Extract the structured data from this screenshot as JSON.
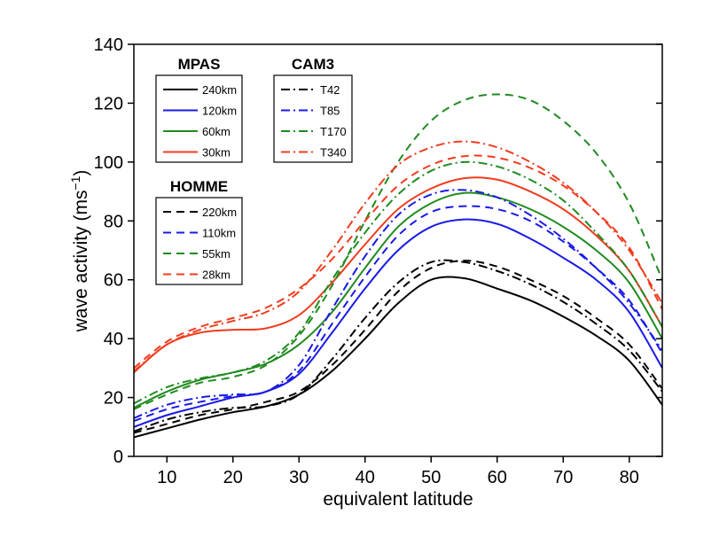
{
  "chart_data": {
    "type": "line",
    "xlabel": "equivalent latitude",
    "ylabel": {
      "main": "wave activity (ms",
      "sup": "−1",
      "end": ")"
    },
    "xlim": [
      5,
      85
    ],
    "ylim": [
      0,
      140
    ],
    "xticks": [
      10,
      20,
      30,
      40,
      50,
      60,
      70,
      80
    ],
    "yticks": [
      0,
      20,
      40,
      60,
      80,
      100,
      120,
      140
    ],
    "grid": false,
    "x": [
      5,
      10,
      15,
      20,
      25,
      30,
      35,
      40,
      45,
      50,
      55,
      60,
      65,
      70,
      75,
      80,
      85
    ],
    "legends": [
      {
        "title": "MPAS",
        "placement": "top-left",
        "entries": [
          0,
          1,
          2,
          3
        ]
      },
      {
        "title": "CAM3",
        "placement": "top-left",
        "entries": [
          8,
          9,
          10,
          11
        ]
      },
      {
        "title": "HOMME",
        "placement": "left",
        "entries": [
          4,
          5,
          6,
          7
        ]
      }
    ],
    "series": [
      {
        "name": "240km",
        "color": "#000000",
        "style": "solid",
        "values": [
          6.5,
          9.5,
          12.5,
          15,
          17,
          21,
          29,
          40,
          52,
          60,
          60.5,
          57,
          53,
          47.5,
          41,
          32.5,
          17.5
        ]
      },
      {
        "name": "120km",
        "color": "#1a1ae6",
        "style": "solid",
        "values": [
          10,
          14,
          17,
          20,
          22,
          28,
          42,
          57,
          70,
          78,
          80.5,
          79,
          74,
          67.5,
          60,
          49,
          30
        ]
      },
      {
        "name": "60km",
        "color": "#1f8a1f",
        "style": "solid",
        "values": [
          16.5,
          22,
          26,
          28.5,
          31.5,
          38,
          49,
          64,
          78,
          86,
          89.5,
          88,
          84,
          78,
          70,
          59,
          40
        ]
      },
      {
        "name": "30km",
        "color": "#f03c1e",
        "style": "solid",
        "values": [
          28.5,
          38,
          42,
          43,
          43.5,
          48,
          59,
          72,
          84,
          91,
          94.5,
          94,
          90,
          84,
          75,
          63,
          44
        ]
      },
      {
        "name": "220km",
        "color": "#000000",
        "style": "dashed",
        "values": [
          8,
          11,
          14,
          16,
          18.5,
          22,
          31,
          43,
          56,
          64,
          66.5,
          64.5,
          60,
          54.5,
          47,
          38,
          23
        ]
      },
      {
        "name": "110km",
        "color": "#1a1ae6",
        "style": "dashed",
        "values": [
          12,
          16,
          18.5,
          20.5,
          22,
          29,
          45,
          61,
          75,
          83,
          85,
          84,
          80,
          73,
          64,
          53,
          35
        ]
      },
      {
        "name": "55km",
        "color": "#1f8a1f",
        "style": "dashed",
        "values": [
          16,
          21,
          25,
          27,
          31,
          41,
          58,
          80,
          100,
          114,
          121,
          123,
          121,
          114,
          103,
          86,
          60
        ]
      },
      {
        "name": "28km",
        "color": "#f03c1e",
        "style": "dashed",
        "values": [
          30,
          39,
          44,
          47,
          50.5,
          57,
          67,
          80,
          92,
          99,
          102,
          101.5,
          98,
          92,
          83,
          71,
          50
        ]
      },
      {
        "name": "T42",
        "color": "#000000",
        "style": "dashdot",
        "values": [
          8.5,
          12.5,
          15,
          16.5,
          17,
          21,
          33,
          47,
          59,
          66,
          66,
          63,
          58.5,
          52.5,
          45,
          36,
          22
        ]
      },
      {
        "name": "T85",
        "color": "#1a1ae6",
        "style": "dashdot",
        "values": [
          13,
          17.5,
          20,
          21,
          22,
          31,
          50,
          68,
          82,
          89,
          90.5,
          88,
          82,
          74,
          64,
          52,
          36
        ]
      },
      {
        "name": "T170",
        "color": "#1f8a1f",
        "style": "dashdot",
        "values": [
          18,
          23.5,
          26.5,
          28.5,
          32.5,
          42,
          60,
          76,
          89,
          97,
          100,
          98.5,
          94,
          87,
          76,
          63,
          44
        ]
      },
      {
        "name": "T340",
        "color": "#f03c1e",
        "style": "dashdot",
        "values": [
          29,
          38,
          43,
          46,
          49,
          56,
          70,
          86,
          99,
          105,
          107,
          105,
          100,
          93,
          83,
          70,
          52
        ]
      }
    ]
  }
}
